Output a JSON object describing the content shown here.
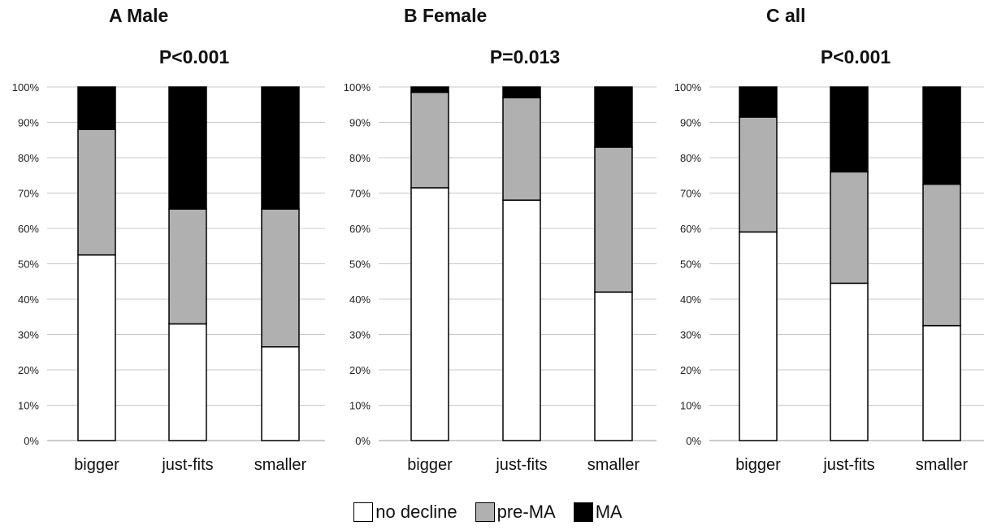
{
  "legend": [
    {
      "label": "no decline",
      "color": "#ffffff"
    },
    {
      "label": "pre-MA",
      "color": "#b0b0b0"
    },
    {
      "label": "MA",
      "color": "#000000"
    }
  ],
  "chart_data": [
    {
      "type": "bar",
      "stacked": true,
      "panel_label": "A Male",
      "title": "P<0.001",
      "categories": [
        "bigger",
        "just-fits",
        "smaller"
      ],
      "yticks": [
        "0%",
        "10%",
        "20%",
        "30%",
        "40%",
        "50%",
        "60%",
        "70%",
        "80%",
        "90%",
        "100%"
      ],
      "ylim": [
        0,
        100
      ],
      "grid": true,
      "series": [
        {
          "name": "no decline",
          "color": "#ffffff",
          "values": [
            52.5,
            33,
            26.5
          ]
        },
        {
          "name": "pre-MA",
          "color": "#b0b0b0",
          "values": [
            35.5,
            32.5,
            39
          ]
        },
        {
          "name": "MA",
          "color": "#000000",
          "values": [
            12,
            34.5,
            34.5
          ]
        }
      ]
    },
    {
      "type": "bar",
      "stacked": true,
      "panel_label": "B Female",
      "title": "P=0.013",
      "categories": [
        "bigger",
        "just-fits",
        "smaller"
      ],
      "yticks": [
        "0%",
        "10%",
        "20%",
        "30%",
        "40%",
        "50%",
        "60%",
        "70%",
        "80%",
        "90%",
        "100%"
      ],
      "ylim": [
        0,
        100
      ],
      "grid": true,
      "series": [
        {
          "name": "no decline",
          "color": "#ffffff",
          "values": [
            71.5,
            68,
            42
          ]
        },
        {
          "name": "pre-MA",
          "color": "#b0b0b0",
          "values": [
            27,
            29,
            41
          ]
        },
        {
          "name": "MA",
          "color": "#000000",
          "values": [
            1.5,
            3,
            17
          ]
        }
      ]
    },
    {
      "type": "bar",
      "stacked": true,
      "panel_label": "C all",
      "title": "P<0.001",
      "categories": [
        "bigger",
        "just-fits",
        "smaller"
      ],
      "yticks": [
        "0%",
        "10%",
        "20%",
        "30%",
        "40%",
        "50%",
        "60%",
        "70%",
        "80%",
        "90%",
        "100%"
      ],
      "ylim": [
        0,
        100
      ],
      "grid": true,
      "series": [
        {
          "name": "no decline",
          "color": "#ffffff",
          "values": [
            59,
            44.5,
            32.5
          ]
        },
        {
          "name": "pre-MA",
          "color": "#b0b0b0",
          "values": [
            32.5,
            31.5,
            40
          ]
        },
        {
          "name": "MA",
          "color": "#000000",
          "values": [
            8.5,
            24,
            27.5
          ]
        }
      ]
    }
  ]
}
